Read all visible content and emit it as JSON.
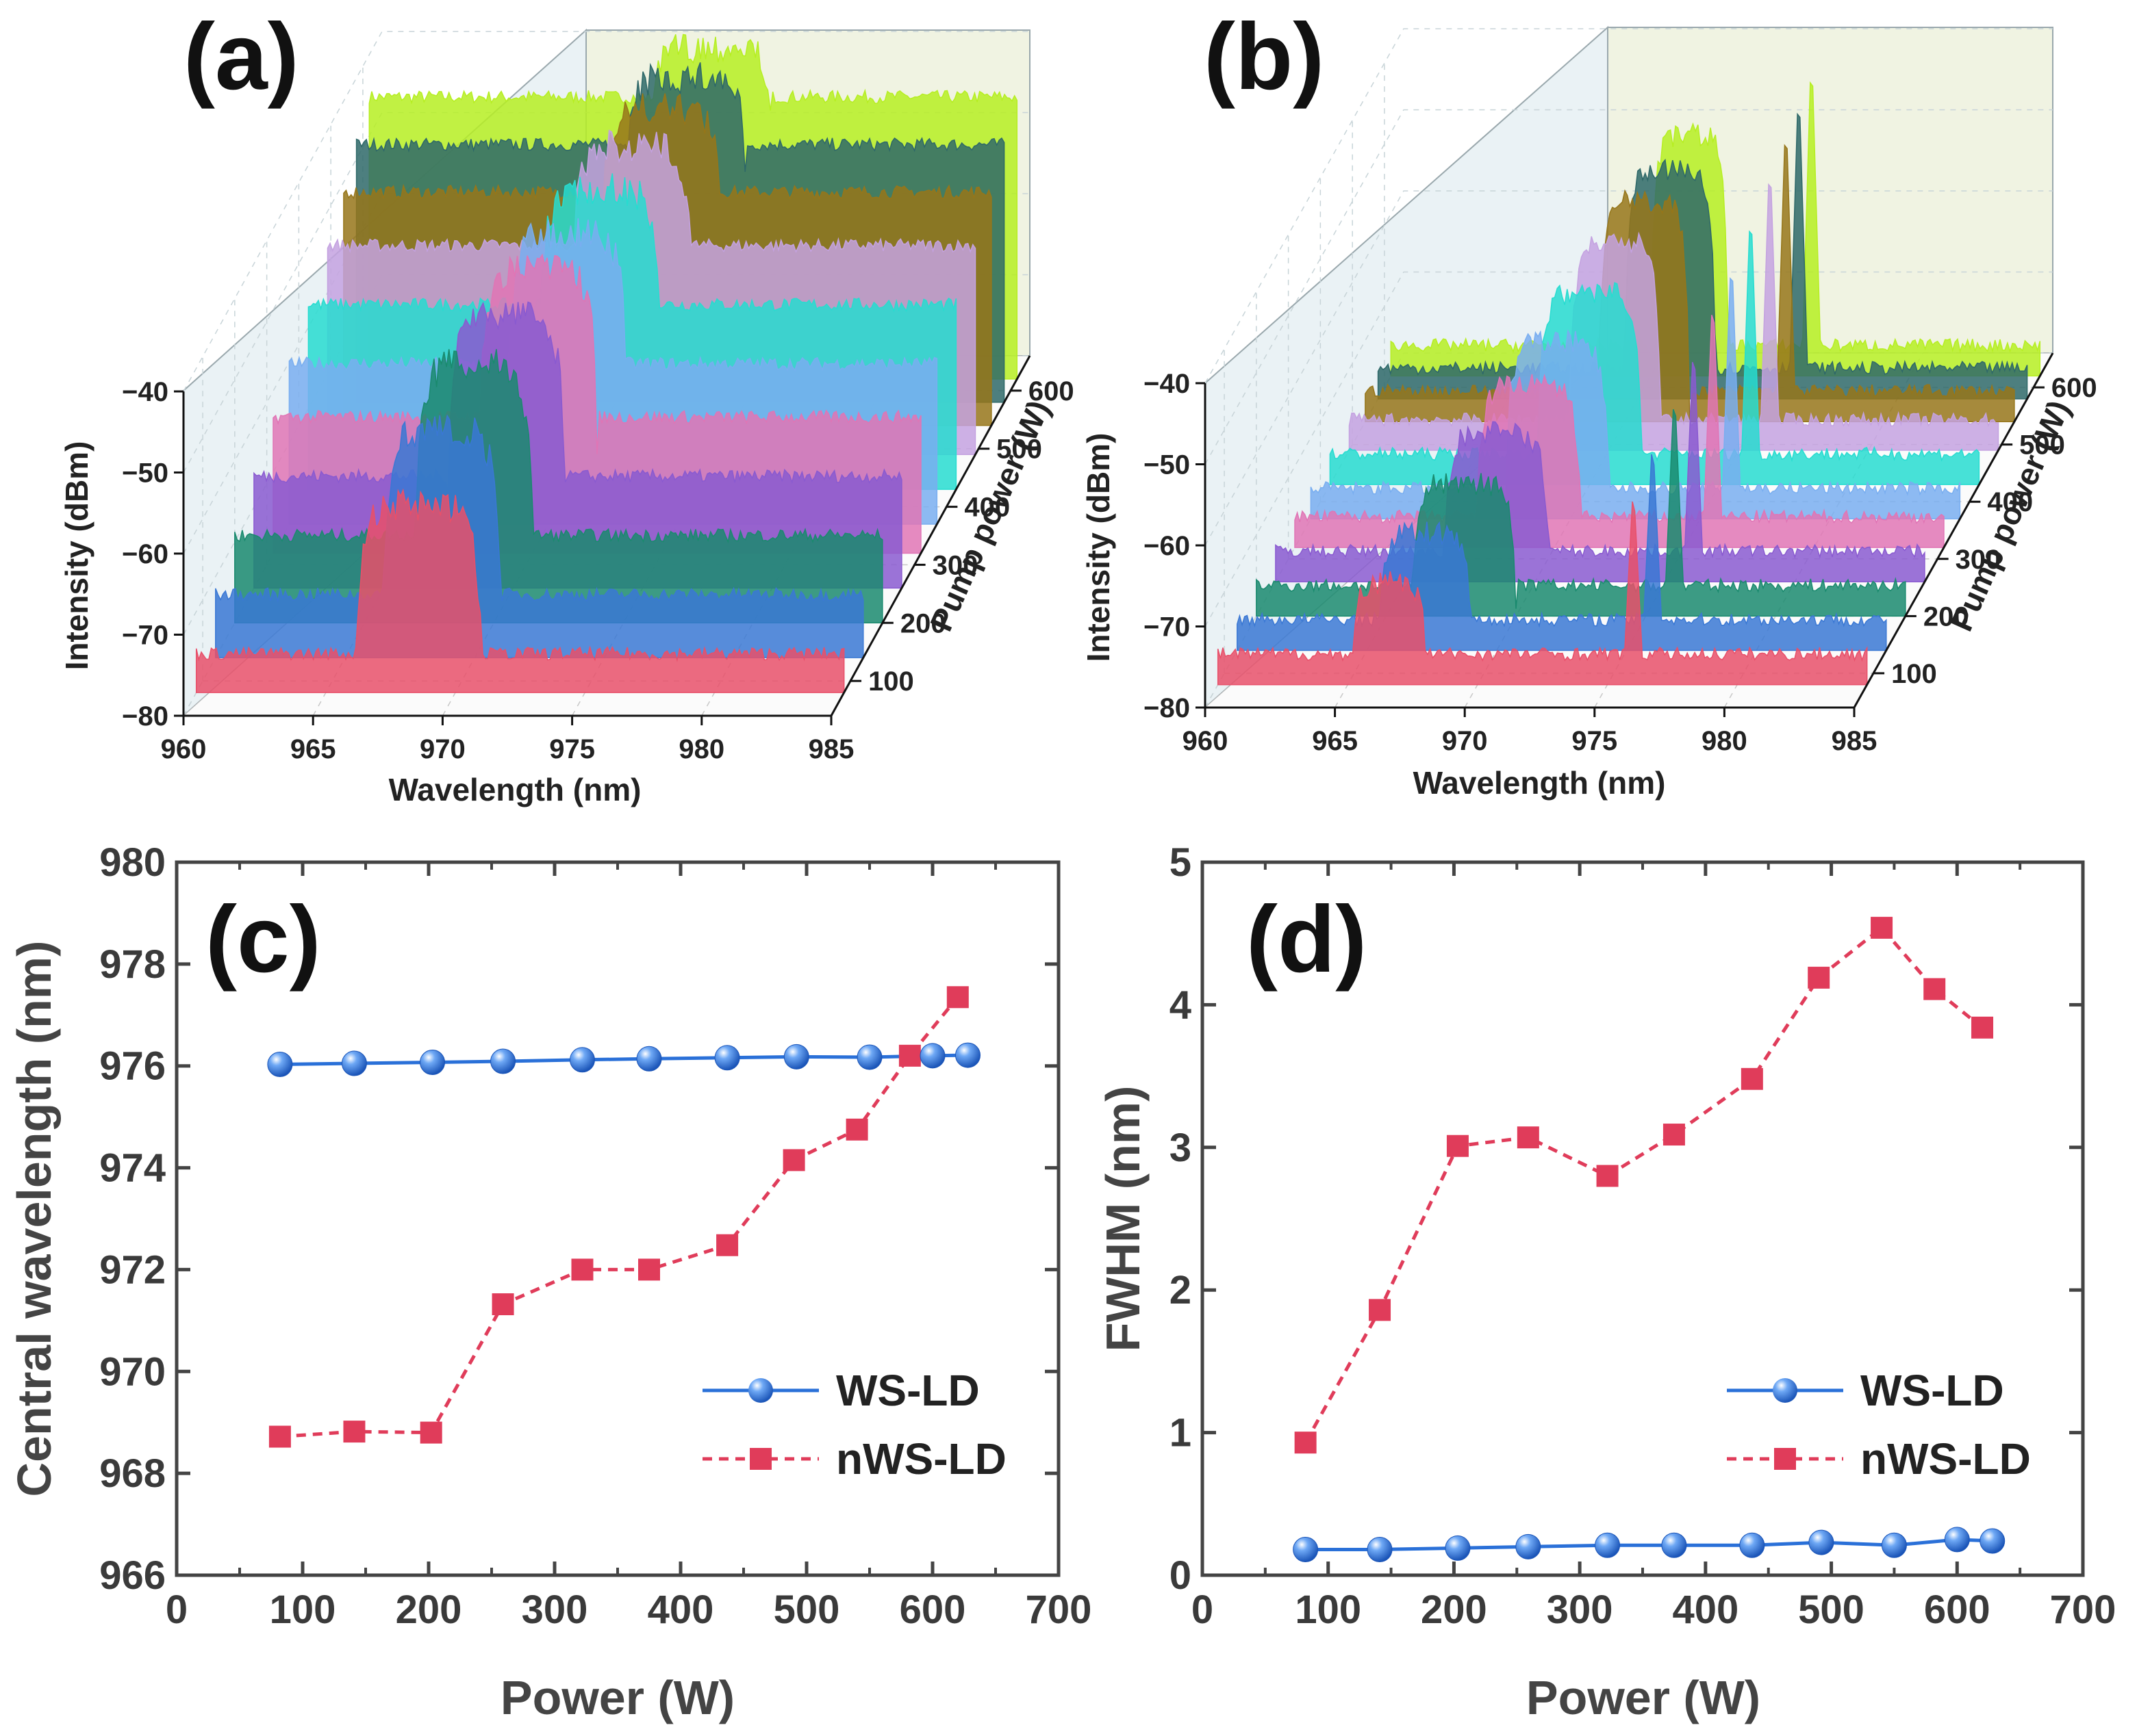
{
  "chart_data": [
    {
      "panel": "(a)",
      "type": "area",
      "title": "",
      "xlabel": "Wavelength (nm)",
      "ylabel": "Intensity (dBm)",
      "zlabel": "Pump power (W)",
      "xticks": [
        "960",
        "965",
        "970",
        "975",
        "980",
        "985"
      ],
      "yticks": [
        "-40",
        "-50",
        "-60",
        "-70",
        "-80"
      ],
      "zticks": [
        "100",
        "200",
        "300",
        "400",
        "500",
        "600"
      ],
      "xlim": [
        960,
        985
      ],
      "ylim": [
        -80,
        -40
      ],
      "series": [
        {
          "power": 80,
          "start": 966.2,
          "end": 971.0,
          "peak": -55,
          "floor": -76,
          "color": "#e8506a"
        },
        {
          "power": 140,
          "start": 966.5,
          "end": 971.0,
          "peak": -50,
          "floor": -73,
          "color": "#3a78d4"
        },
        {
          "power": 200,
          "start": 967.0,
          "end": 971.5,
          "peak": -46,
          "floor": -70,
          "color": "#1a8a6e"
        },
        {
          "power": 260,
          "start": 967.5,
          "end": 972.0,
          "peak": -44,
          "floor": -67,
          "color": "#8a5ad0"
        },
        {
          "power": 320,
          "start": 968.0,
          "end": 972.5,
          "peak": -43,
          "floor": -64,
          "color": "#e075b5"
        },
        {
          "power": 370,
          "start": 968.5,
          "end": 973.0,
          "peak": -42,
          "floor": -61,
          "color": "#79aef0"
        },
        {
          "power": 430,
          "start": 969.0,
          "end": 973.5,
          "peak": -41,
          "floor": -58,
          "color": "#27dcd0"
        },
        {
          "power": 490,
          "start": 969.5,
          "end": 974.0,
          "peak": -40,
          "floor": -55,
          "color": "#c4a2e0"
        },
        {
          "power": 540,
          "start": 970.0,
          "end": 974.5,
          "peak": -39,
          "floor": -52,
          "color": "#96761a"
        },
        {
          "power": 580,
          "start": 970.5,
          "end": 975.0,
          "peak": -38,
          "floor": -49,
          "color": "#2e6868"
        },
        {
          "power": 620,
          "start": 971.0,
          "end": 975.5,
          "peak": -37,
          "floor": -46,
          "color": "#b6ee22"
        }
      ]
    },
    {
      "panel": "(b)",
      "type": "area",
      "title": "",
      "xlabel": "Wavelength (nm)",
      "ylabel": "Intensity (dBm)",
      "zlabel": "Pump power (W)",
      "xticks": [
        "960",
        "965",
        "970",
        "975",
        "980",
        "985"
      ],
      "yticks": [
        "-40",
        "-50",
        "-60",
        "-70",
        "-80"
      ],
      "zticks": [
        "100",
        "200",
        "300",
        "400",
        "500",
        "600"
      ],
      "xlim": [
        960,
        985
      ],
      "ylim": [
        -80,
        -40
      ],
      "series": [
        {
          "power": 80,
          "band_start": 965.2,
          "band_end": 968.0,
          "peak_nm": 976.0,
          "color": "#e8506a"
        },
        {
          "power": 140,
          "band_start": 965.5,
          "band_end": 969.0,
          "peak_nm": 976.0,
          "color": "#3a78d4"
        },
        {
          "power": 200,
          "band_start": 966.0,
          "band_end": 970.0,
          "peak_nm": 976.1,
          "color": "#1a8a6e"
        },
        {
          "power": 260,
          "band_start": 966.5,
          "band_end": 970.5,
          "peak_nm": 976.1,
          "color": "#8a5ad0"
        },
        {
          "power": 320,
          "band_start": 967.0,
          "band_end": 971.0,
          "peak_nm": 976.1,
          "color": "#e075b5"
        },
        {
          "power": 370,
          "band_start": 967.5,
          "band_end": 971.5,
          "peak_nm": 976.2,
          "color": "#79aef0"
        },
        {
          "power": 430,
          "band_start": 968.0,
          "band_end": 972.0,
          "peak_nm": 976.2,
          "color": "#27dcd0"
        },
        {
          "power": 490,
          "band_start": 968.5,
          "band_end": 972.0,
          "peak_nm": 976.2,
          "color": "#c4a2e0"
        },
        {
          "power": 540,
          "band_start": 969.0,
          "band_end": 972.5,
          "peak_nm": 976.2,
          "color": "#96761a"
        },
        {
          "power": 580,
          "band_start": 969.5,
          "band_end": 973.0,
          "peak_nm": 976.2,
          "color": "#2e6868"
        },
        {
          "power": 620,
          "band_start": 970.0,
          "band_end": 973.0,
          "peak_nm": 976.2,
          "color": "#b6ee22"
        }
      ]
    },
    {
      "panel": "(c)",
      "type": "line",
      "title": "",
      "xlabel": "Power (W)",
      "ylabel": "Central wavelength (nm)",
      "xlim": [
        0,
        700
      ],
      "ylim": [
        966,
        980
      ],
      "xticks": [
        "0",
        "100",
        "200",
        "300",
        "400",
        "500",
        "600",
        "700"
      ],
      "yticks": [
        "966",
        "968",
        "970",
        "972",
        "974",
        "976",
        "978",
        "980"
      ],
      "legend_position": "bottom-right",
      "series": [
        {
          "name": "WS-LD",
          "style": "solid",
          "marker": "sphere",
          "color": "#2a70d8",
          "x": [
            82,
            141,
            203,
            259,
            322,
            375,
            437,
            492,
            550,
            600,
            628
          ],
          "y": [
            976.03,
            976.05,
            976.07,
            976.09,
            976.12,
            976.14,
            976.16,
            976.18,
            976.17,
            976.2,
            976.21
          ]
        },
        {
          "name": "nWS-LD",
          "style": "dashed",
          "marker": "square",
          "color": "#e03c5a",
          "x": [
            82,
            141,
            202,
            259,
            322,
            375,
            437,
            490,
            540,
            582,
            620
          ],
          "y": [
            968.72,
            968.82,
            968.8,
            971.32,
            972.0,
            972.0,
            972.48,
            974.15,
            974.75,
            976.2,
            977.35
          ]
        }
      ]
    },
    {
      "panel": "(d)",
      "type": "line",
      "title": "",
      "xlabel": "Power (W)",
      "ylabel": "FWHM (nm)",
      "xlim": [
        0,
        700
      ],
      "ylim": [
        0,
        5
      ],
      "xticks": [
        "0",
        "100",
        "200",
        "300",
        "400",
        "500",
        "600",
        "700"
      ],
      "yticks": [
        "0",
        "1",
        "2",
        "3",
        "4",
        "5"
      ],
      "legend_position": "bottom-right",
      "series": [
        {
          "name": "WS-LD",
          "style": "solid",
          "marker": "sphere",
          "color": "#2a70d8",
          "x": [
            82,
            141,
            203,
            259,
            322,
            375,
            437,
            492,
            550,
            600,
            628
          ],
          "y": [
            0.18,
            0.18,
            0.19,
            0.2,
            0.21,
            0.21,
            0.21,
            0.23,
            0.21,
            0.25,
            0.24
          ]
        },
        {
          "name": "nWS-LD",
          "style": "dashed",
          "marker": "square",
          "color": "#e03c5a",
          "x": [
            82,
            141,
            203,
            259,
            322,
            375,
            437,
            490,
            540,
            582,
            620
          ],
          "y": [
            0.93,
            1.86,
            3.01,
            3.07,
            2.8,
            3.09,
            3.48,
            4.19,
            4.54,
            4.11,
            3.84
          ]
        }
      ]
    }
  ]
}
